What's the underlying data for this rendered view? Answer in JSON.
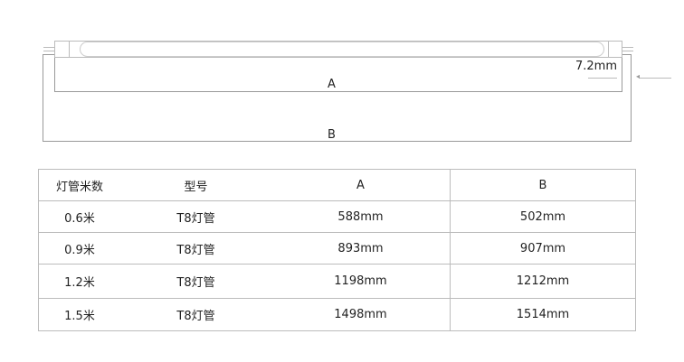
{
  "diagram": {
    "label_a": "A",
    "label_b": "B",
    "dimension": "7.2mm"
  },
  "table": {
    "headers": [
      "灯管米数",
      "型号",
      "A",
      "B"
    ],
    "rows": [
      [
        "0.6米",
        "T8灯管",
        "588mm",
        "502mm"
      ],
      [
        "0.9米",
        "T8灯管",
        "893mm",
        "907mm"
      ],
      [
        "1.2米",
        "T8灯管",
        "1198mm",
        "1212mm"
      ],
      [
        "1.5米",
        "T8灯管",
        "1498mm",
        "1514mm"
      ]
    ]
  }
}
